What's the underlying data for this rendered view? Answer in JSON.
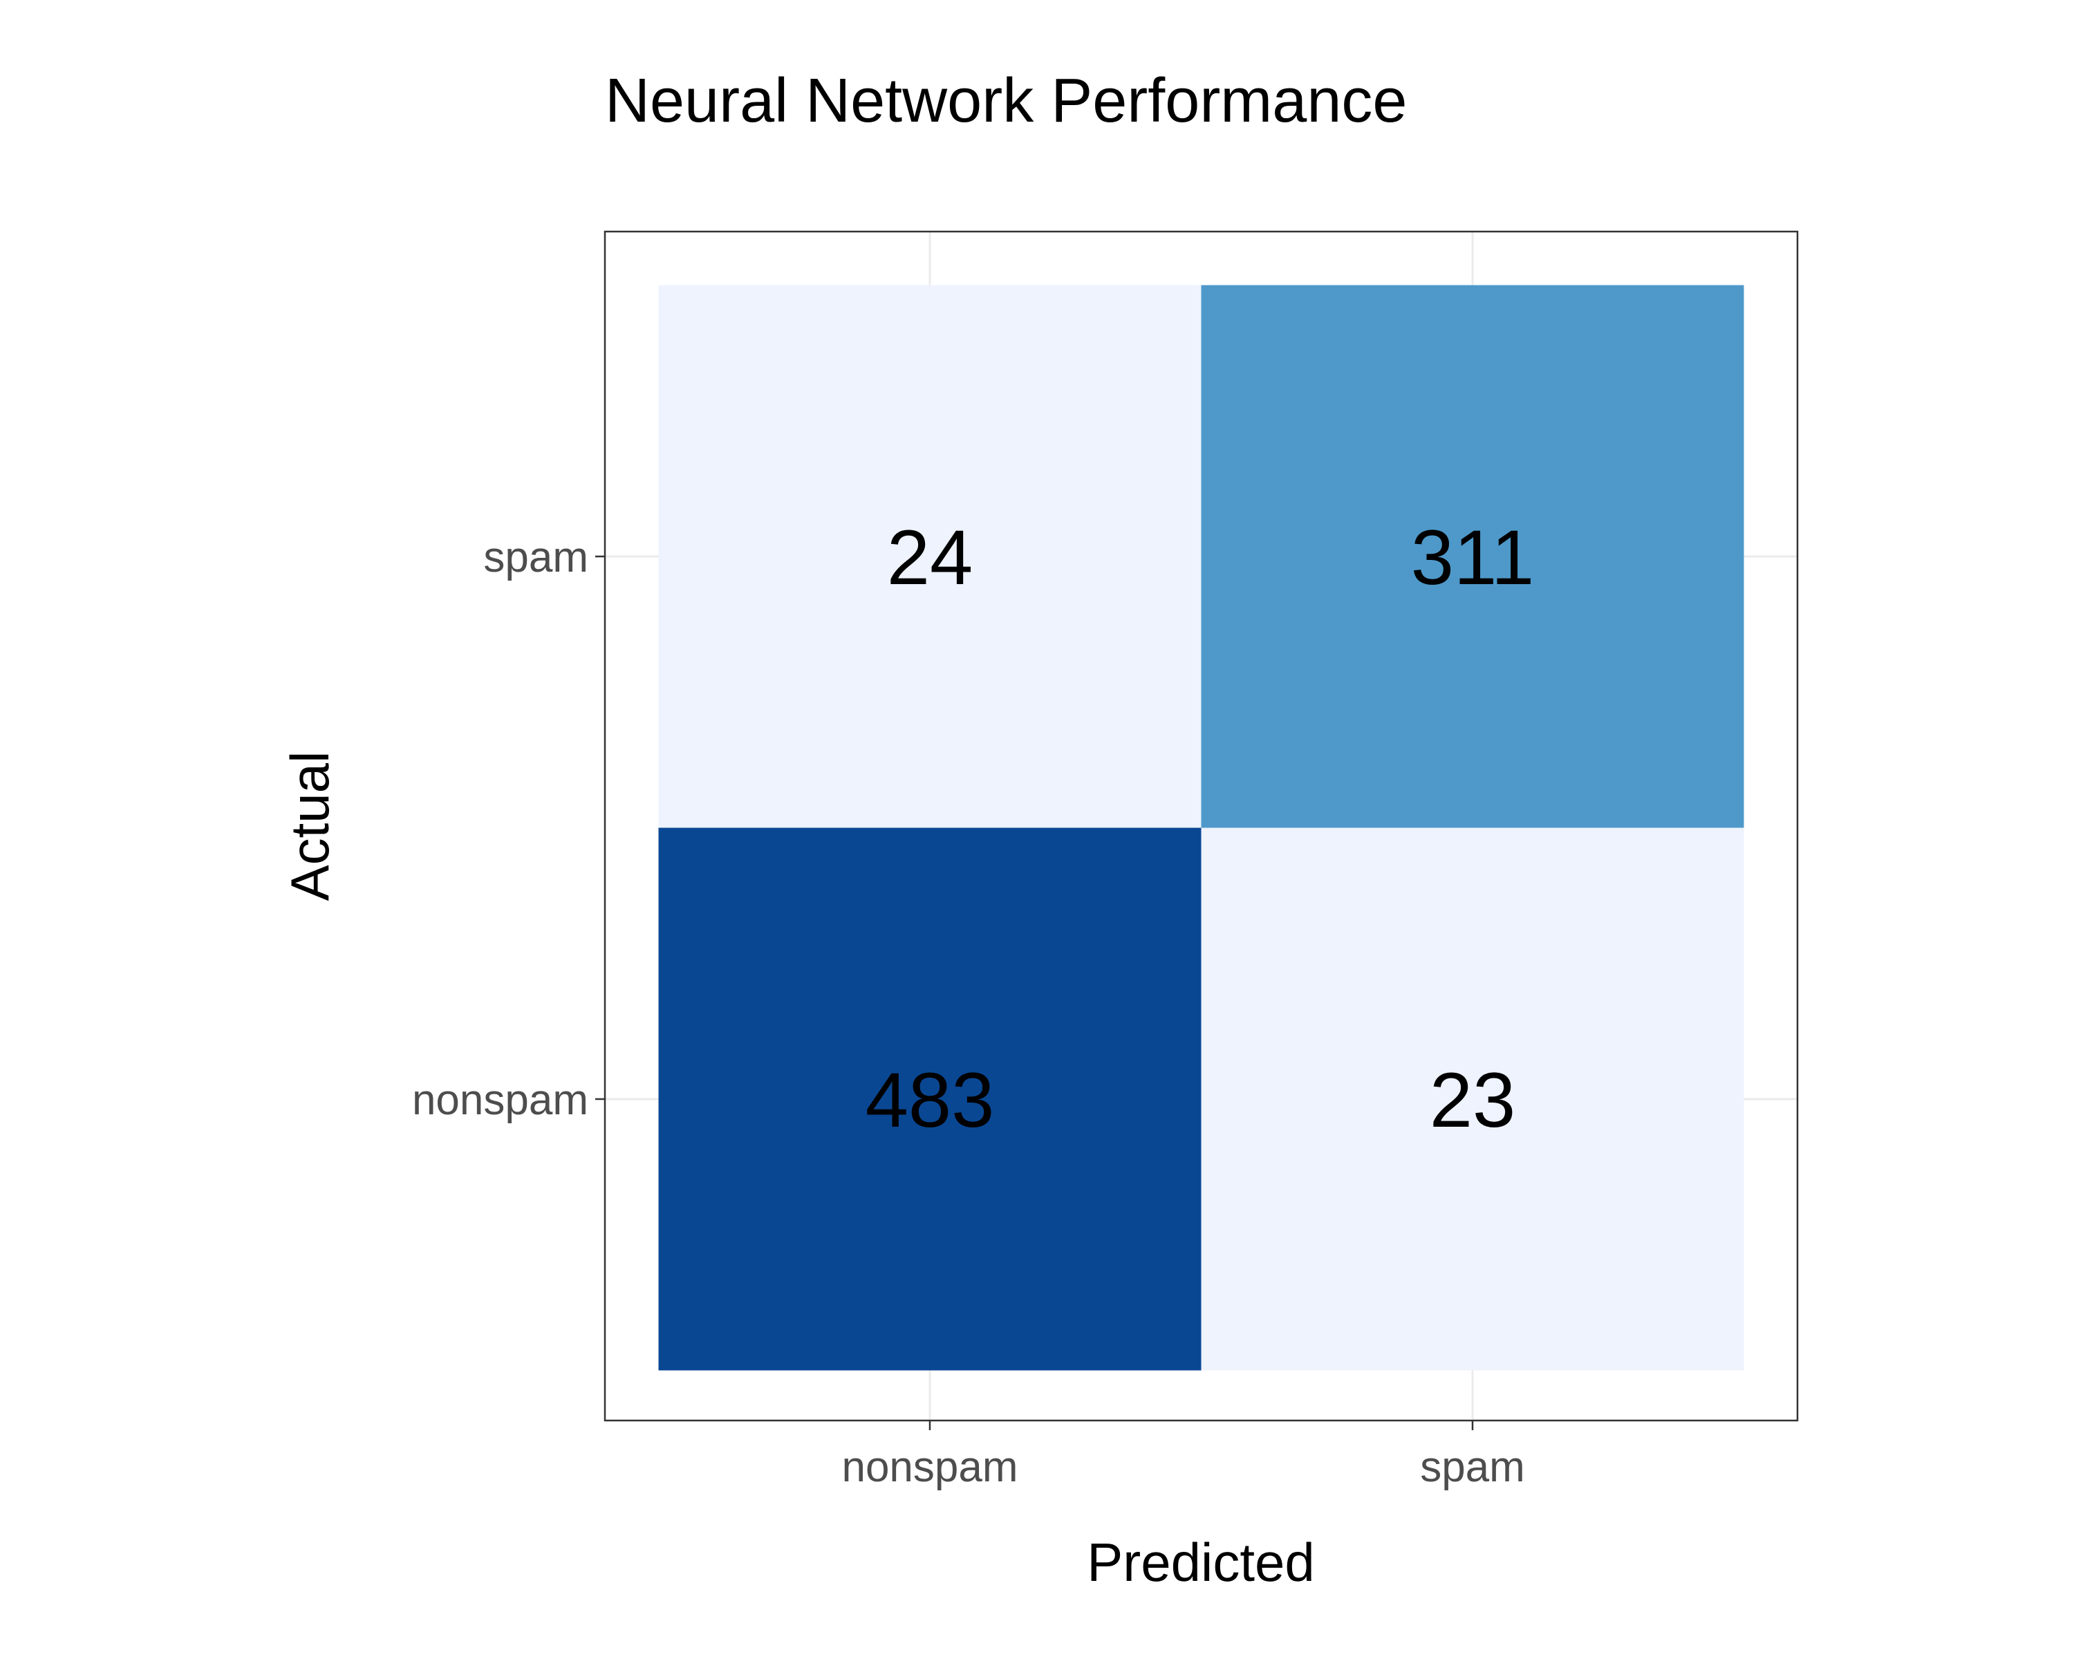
{
  "chart_data": {
    "type": "heatmap",
    "title": "Neural Network Performance",
    "xlabel": "Predicted",
    "ylabel": "Actual",
    "x_categories": [
      "nonspam",
      "spam"
    ],
    "y_categories": [
      "nonspam",
      "spam"
    ],
    "cells": [
      {
        "actual": "spam",
        "predicted": "nonspam",
        "value": 24,
        "label": "24",
        "color": "#eef3fe"
      },
      {
        "actual": "spam",
        "predicted": "spam",
        "value": 311,
        "label": "311",
        "color": "#4e99ca"
      },
      {
        "actual": "nonspam",
        "predicted": "nonspam",
        "value": 483,
        "label": "483",
        "color": "#0a4793"
      },
      {
        "actual": "nonspam",
        "predicted": "spam",
        "value": 23,
        "label": "23",
        "color": "#eef3fe"
      }
    ],
    "grid": true,
    "legend": "none"
  }
}
